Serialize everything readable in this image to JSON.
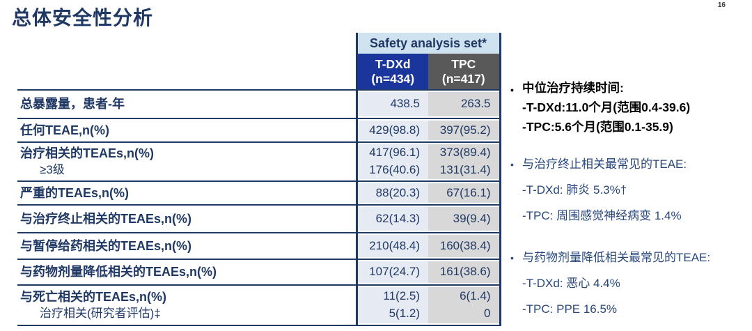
{
  "page": {
    "title": "总体安全性分析",
    "number": "16"
  },
  "colors": {
    "navy_text": "#1f3864",
    "header_blue_bg": "#1a359c",
    "header_gray_bg": "#595959",
    "set_header_bg": "#cfe2f0",
    "tdxd_col_bg": "#e6eaf3",
    "tpc_col_bg": "#d8d8d8",
    "note_navy": "#27477c",
    "note_black": "#000000"
  },
  "table": {
    "header": {
      "set_label": "Safety analysis set*",
      "col1": "T-DXd",
      "col1_n": "(n=434)",
      "col2": "TPC",
      "col2_n": "(n=417)"
    },
    "rows": [
      {
        "label": "总暴露量，患者-年",
        "v1": "438.5",
        "v2": "263.5"
      },
      {
        "label": "任何TEAE,n(%)",
        "v1": "429(98.8)",
        "v2": "397(95.2)"
      },
      {
        "label": "治疗相关的TEAEs,n(%)",
        "sub": "≥3级",
        "v1": "417(96.1)",
        "v2": "373(89.4)",
        "sv1": "176(40.6)",
        "sv2": "131(31.4)"
      },
      {
        "label": "严重的TEAEs,n(%)",
        "v1": "88(20.3)",
        "v2": "67(16.1)"
      },
      {
        "label": "与治疗终止相关的TEAEs,n(%)",
        "v1": "62(14.3)",
        "v2": "39(9.4)"
      },
      {
        "label": "与暂停给药相关的TEAEs,n(%)",
        "v1": "210(48.4)",
        "v2": "160(38.4)"
      },
      {
        "label": "与药物剂量降低相关的TEAEs,n(%)",
        "v1": "107(24.7)",
        "v2": "161(38.6)"
      },
      {
        "label": "与死亡相关的TEAEs,n(%)",
        "sub": "治疗相关(研究者评估)‡",
        "v1": "11(2.5)",
        "v2": "6(1.4)",
        "sv1": "5(1.2)",
        "sv2": "0"
      }
    ]
  },
  "notes_bullet": "•",
  "notes": [
    {
      "heading": "中位治疗持续时间:",
      "lines": [
        "-T-DXd:11.0个月(范围0.4-39.6)",
        "-TPC:5.6个月(范围0.1-35.9)"
      ]
    },
    {
      "heading": "与治疗终止相关最常见的TEAE:",
      "lines": [
        "-T-DXd: 肺炎 5.3%†",
        "-TPC: 周围感觉神经病变 1.4%"
      ]
    },
    {
      "heading": "与药物剂量降低相关最常见的TEAE:",
      "lines": [
        "-T-DXd: 恶心 4.4%",
        "-TPC: PPE 16.5%"
      ]
    }
  ]
}
